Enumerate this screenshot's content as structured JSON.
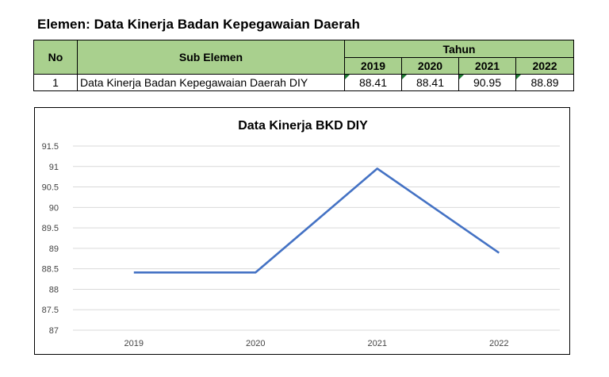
{
  "heading": "Elemen: Data Kinerja Badan Kepegawaian Daerah",
  "table": {
    "col_no": "No",
    "col_sub": "Sub Elemen",
    "col_year_group": "Tahun",
    "years": [
      "2019",
      "2020",
      "2021",
      "2022"
    ],
    "row": {
      "no": "1",
      "sub": "Data Kinerja Badan Kepegawaian Daerah DIY",
      "values": [
        "88.41",
        "88.41",
        "90.95",
        "88.89"
      ]
    },
    "header_color": "#a9d08e"
  },
  "chart_data": {
    "type": "line",
    "title": "Data Kinerja BKD DIY",
    "categories": [
      "2019",
      "2020",
      "2021",
      "2022"
    ],
    "series": [
      {
        "values": [
          88.41,
          88.41,
          90.95,
          88.89
        ],
        "color": "#4472c4"
      }
    ],
    "ylim": [
      87,
      91.5
    ],
    "yticks": [
      "91.5",
      "91",
      "90.5",
      "90",
      "89.5",
      "89",
      "88.5",
      "88",
      "87.5",
      "87"
    ],
    "grid": true,
    "legend": "none"
  }
}
